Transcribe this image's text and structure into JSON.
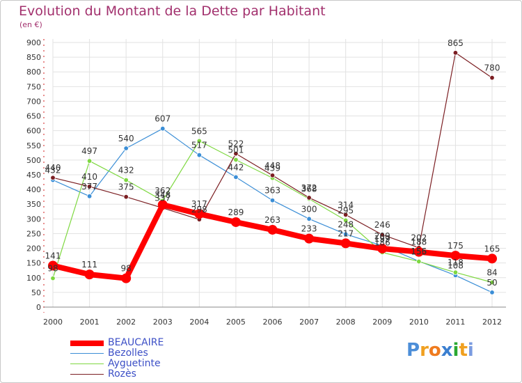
{
  "chart_data": {
    "type": "line",
    "title": "Evolution du Montant de la Dette par Habitant",
    "subtitle": "(en €)",
    "x": [
      "2000",
      "2001",
      "2002",
      "2003",
      "2004",
      "2005",
      "2006",
      "2007",
      "2008",
      "2009",
      "2010",
      "2011",
      "2012"
    ],
    "ylim": [
      0,
      900
    ],
    "y_ticks": [
      0,
      50,
      100,
      150,
      200,
      250,
      300,
      350,
      400,
      450,
      500,
      550,
      600,
      650,
      700,
      750,
      800,
      850,
      900
    ],
    "grid": true,
    "legend_position": "bottom-left",
    "series": [
      {
        "name": "BEAUCAIRE",
        "color": "#ff0000",
        "values": [
          141,
          111,
          98,
          348,
          317,
          289,
          263,
          233,
          217,
          199,
          188,
          175,
          165
        ]
      },
      {
        "name": "Bezolles",
        "color": "#3b8ed6",
        "values": [
          432,
          377,
          540,
          607,
          517,
          442,
          363,
          300,
          248,
          209,
          156,
          108,
          50
        ]
      },
      {
        "name": "Ayguetinte",
        "color": "#7ed840",
        "values": [
          98,
          497,
          432,
          362,
          565,
          501,
          439,
          368,
          295,
          186,
          155,
          118,
          84
        ]
      },
      {
        "name": "Rozès",
        "color": "#7b1e22",
        "values": [
          440,
          410,
          375,
          337,
          298,
          522,
          448,
          372,
          314,
          246,
          202,
          865,
          780
        ]
      }
    ]
  },
  "branding": {
    "logo_letters": [
      "P",
      "r",
      "o",
      "x",
      "i",
      "t",
      "i"
    ],
    "logo_colors": [
      "#4c8ed8",
      "#f0a020",
      "#ef7b1f",
      "#3b7fd0",
      "#2aa832",
      "#f0a020",
      "#7a9be0"
    ]
  }
}
